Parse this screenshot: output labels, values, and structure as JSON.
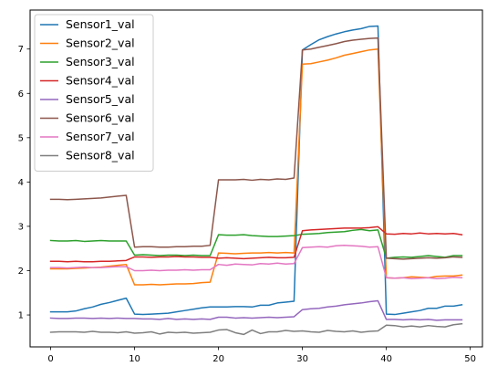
{
  "chart_data": {
    "type": "line",
    "x": [
      0,
      1,
      2,
      3,
      4,
      5,
      6,
      7,
      8,
      9,
      10,
      11,
      12,
      13,
      14,
      15,
      16,
      17,
      18,
      19,
      20,
      21,
      22,
      23,
      24,
      25,
      26,
      27,
      28,
      29,
      30,
      31,
      32,
      33,
      34,
      35,
      36,
      37,
      38,
      39,
      40,
      41,
      42,
      43,
      44,
      45,
      46,
      47,
      48,
      49
    ],
    "xlim": [
      -2.45,
      51.45
    ],
    "ylim": [
      0.28,
      7.88
    ],
    "xticks": [
      0,
      10,
      20,
      30,
      40,
      50
    ],
    "yticks": [
      1,
      2,
      3,
      4,
      5,
      6,
      7
    ],
    "grid": false,
    "legend_position": "upper-left",
    "series": [
      {
        "name": "Sensor1_val",
        "color": "#1f77b4",
        "values": [
          1.07,
          1.07,
          1.07,
          1.09,
          1.14,
          1.18,
          1.24,
          1.28,
          1.33,
          1.38,
          1.02,
          1.01,
          1.02,
          1.03,
          1.04,
          1.07,
          1.1,
          1.13,
          1.16,
          1.18,
          1.18,
          1.18,
          1.19,
          1.19,
          1.18,
          1.22,
          1.22,
          1.27,
          1.29,
          1.31,
          6.98,
          7.1,
          7.21,
          7.28,
          7.34,
          7.39,
          7.43,
          7.46,
          7.51,
          7.52,
          1.02,
          1.01,
          1.04,
          1.07,
          1.1,
          1.15,
          1.15,
          1.2,
          1.2,
          1.23
        ]
      },
      {
        "name": "Sensor2_val",
        "color": "#ff7f0e",
        "values": [
          2.04,
          2.04,
          2.04,
          2.05,
          2.06,
          2.07,
          2.08,
          2.1,
          2.12,
          2.14,
          1.68,
          1.68,
          1.69,
          1.68,
          1.69,
          1.7,
          1.7,
          1.71,
          1.73,
          1.74,
          2.4,
          2.39,
          2.38,
          2.39,
          2.4,
          2.4,
          2.41,
          2.4,
          2.41,
          2.4,
          6.66,
          6.67,
          6.71,
          6.75,
          6.8,
          6.86,
          6.9,
          6.94,
          6.98,
          7.0,
          1.84,
          1.83,
          1.84,
          1.86,
          1.85,
          1.84,
          1.87,
          1.88,
          1.88,
          1.9
        ]
      },
      {
        "name": "Sensor3_val",
        "color": "#2ca02c",
        "values": [
          2.68,
          2.67,
          2.67,
          2.68,
          2.66,
          2.67,
          2.68,
          2.67,
          2.67,
          2.67,
          2.35,
          2.36,
          2.35,
          2.34,
          2.35,
          2.35,
          2.34,
          2.35,
          2.34,
          2.34,
          2.81,
          2.8,
          2.8,
          2.81,
          2.79,
          2.78,
          2.77,
          2.77,
          2.78,
          2.79,
          2.82,
          2.83,
          2.84,
          2.86,
          2.87,
          2.88,
          2.91,
          2.93,
          2.9,
          2.92,
          2.28,
          2.3,
          2.31,
          2.3,
          2.32,
          2.34,
          2.32,
          2.3,
          2.34,
          2.34
        ]
      },
      {
        "name": "Sensor4_val",
        "color": "#d62728",
        "values": [
          2.21,
          2.21,
          2.2,
          2.21,
          2.2,
          2.2,
          2.21,
          2.21,
          2.22,
          2.23,
          2.31,
          2.31,
          2.3,
          2.31,
          2.31,
          2.32,
          2.31,
          2.31,
          2.3,
          2.3,
          2.28,
          2.29,
          2.28,
          2.27,
          2.28,
          2.29,
          2.3,
          2.29,
          2.29,
          2.3,
          2.9,
          2.92,
          2.93,
          2.94,
          2.95,
          2.96,
          2.96,
          2.96,
          2.97,
          2.99,
          2.83,
          2.82,
          2.84,
          2.83,
          2.85,
          2.83,
          2.84,
          2.83,
          2.84,
          2.81
        ]
      },
      {
        "name": "Sensor5_val",
        "color": "#9467bd",
        "values": [
          0.93,
          0.92,
          0.92,
          0.93,
          0.93,
          0.92,
          0.93,
          0.92,
          0.93,
          0.92,
          0.92,
          0.91,
          0.91,
          0.9,
          0.92,
          0.9,
          0.91,
          0.9,
          0.91,
          0.9,
          0.95,
          0.95,
          0.93,
          0.94,
          0.93,
          0.94,
          0.95,
          0.94,
          0.95,
          0.96,
          1.12,
          1.14,
          1.15,
          1.18,
          1.2,
          1.23,
          1.25,
          1.27,
          1.3,
          1.32,
          0.9,
          0.9,
          0.89,
          0.9,
          0.89,
          0.9,
          0.88,
          0.89,
          0.89,
          0.89
        ]
      },
      {
        "name": "Sensor6_val",
        "color": "#8c564b",
        "values": [
          3.61,
          3.61,
          3.6,
          3.61,
          3.62,
          3.63,
          3.64,
          3.66,
          3.68,
          3.7,
          2.53,
          2.54,
          2.54,
          2.53,
          2.53,
          2.54,
          2.54,
          2.55,
          2.55,
          2.57,
          4.05,
          4.05,
          4.05,
          4.06,
          4.04,
          4.06,
          4.05,
          4.07,
          4.06,
          4.09,
          6.98,
          7.0,
          7.04,
          7.08,
          7.12,
          7.17,
          7.2,
          7.22,
          7.24,
          7.25,
          2.28,
          2.27,
          2.26,
          2.27,
          2.28,
          2.29,
          2.28,
          2.29,
          2.31,
          2.3
        ]
      },
      {
        "name": "Sensor7_val",
        "color": "#e377c2",
        "values": [
          2.07,
          2.07,
          2.06,
          2.07,
          2.08,
          2.07,
          2.07,
          2.08,
          2.09,
          2.09,
          2.0,
          2.0,
          2.01,
          2.0,
          2.01,
          2.01,
          2.02,
          2.01,
          2.02,
          2.02,
          2.14,
          2.12,
          2.15,
          2.14,
          2.13,
          2.16,
          2.15,
          2.17,
          2.15,
          2.16,
          2.52,
          2.53,
          2.54,
          2.53,
          2.56,
          2.57,
          2.56,
          2.55,
          2.53,
          2.54,
          1.84,
          1.83,
          1.84,
          1.82,
          1.83,
          1.84,
          1.82,
          1.83,
          1.85,
          1.84
        ]
      },
      {
        "name": "Sensor8_val",
        "color": "#7f7f7f",
        "values": [
          0.61,
          0.62,
          0.62,
          0.62,
          0.61,
          0.63,
          0.61,
          0.61,
          0.6,
          0.62,
          0.59,
          0.6,
          0.62,
          0.57,
          0.61,
          0.6,
          0.61,
          0.59,
          0.6,
          0.61,
          0.66,
          0.67,
          0.6,
          0.56,
          0.66,
          0.58,
          0.62,
          0.62,
          0.65,
          0.63,
          0.64,
          0.62,
          0.61,
          0.65,
          0.63,
          0.62,
          0.64,
          0.61,
          0.63,
          0.64,
          0.77,
          0.76,
          0.73,
          0.75,
          0.73,
          0.76,
          0.74,
          0.73,
          0.78,
          0.8
        ]
      }
    ]
  }
}
